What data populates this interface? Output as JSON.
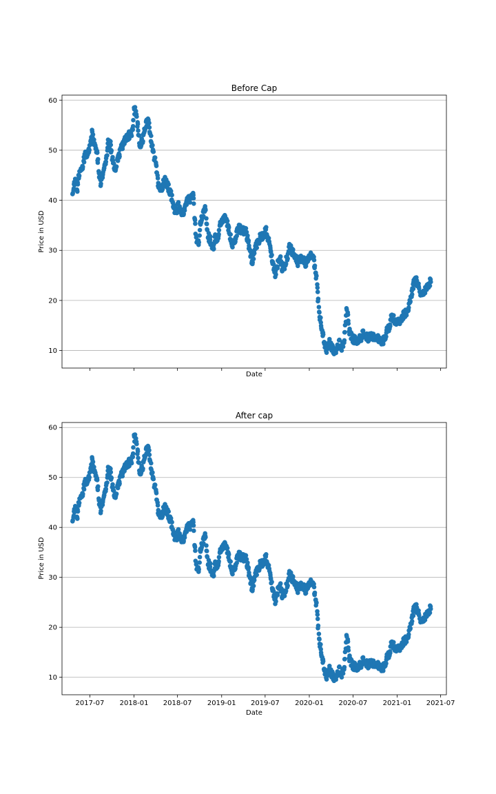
{
  "chart_data": [
    {
      "type": "scatter",
      "title": "Before Cap",
      "xlabel": "Date",
      "ylabel": "Price in USD",
      "x_tick_labels_visible": false,
      "y_grid": true,
      "x_grid": false,
      "marker_color": "#1f77b4",
      "xlim": [
        "2017-03-07",
        "2021-07-25"
      ],
      "ylim": [
        6.5,
        61
      ],
      "x_ticks": [
        "2017-07",
        "2018-01",
        "2018-07",
        "2019-01",
        "2019-07",
        "2020-01",
        "2020-07",
        "2021-01",
        "2021-07"
      ],
      "y_ticks": [
        10,
        20,
        30,
        40,
        50,
        60
      ],
      "series_keypoints": [
        [
          "2017-04-20",
          41.5
        ],
        [
          "2017-05-01",
          44
        ],
        [
          "2017-05-10",
          42.5
        ],
        [
          "2017-05-20",
          46
        ],
        [
          "2017-06-01",
          47
        ],
        [
          "2017-06-10",
          49
        ],
        [
          "2017-06-20",
          49.5
        ],
        [
          "2017-07-01",
          50.5
        ],
        [
          "2017-07-10",
          53.5
        ],
        [
          "2017-07-20",
          51
        ],
        [
          "2017-08-01",
          49
        ],
        [
          "2017-08-08",
          45.5
        ],
        [
          "2017-08-15",
          43.5
        ],
        [
          "2017-08-25",
          45.5
        ],
        [
          "2017-09-05",
          47
        ],
        [
          "2017-09-15",
          51.5
        ],
        [
          "2017-09-25",
          51
        ],
        [
          "2017-10-05",
          47.5
        ],
        [
          "2017-10-15",
          46.5
        ],
        [
          "2017-10-25",
          48.5
        ],
        [
          "2017-11-10",
          50.5
        ],
        [
          "2017-11-25",
          52
        ],
        [
          "2017-12-10",
          53
        ],
        [
          "2017-12-25",
          53.5
        ],
        [
          "2018-01-01",
          58
        ],
        [
          "2018-01-10",
          57.5
        ],
        [
          "2018-01-18",
          54
        ],
        [
          "2018-01-25",
          51
        ],
        [
          "2018-02-05",
          52
        ],
        [
          "2018-02-15",
          54
        ],
        [
          "2018-02-25",
          56
        ],
        [
          "2018-03-05",
          55
        ],
        [
          "2018-03-15",
          51.5
        ],
        [
          "2018-03-25",
          49
        ],
        [
          "2018-04-03",
          47
        ],
        [
          "2018-04-12",
          43
        ],
        [
          "2018-04-25",
          42.5
        ],
        [
          "2018-05-10",
          44
        ],
        [
          "2018-05-25",
          42.5
        ],
        [
          "2018-06-05",
          41
        ],
        [
          "2018-06-15",
          38.5
        ],
        [
          "2018-06-25",
          37.5
        ],
        [
          "2018-07-05",
          39
        ],
        [
          "2018-07-15",
          38
        ],
        [
          "2018-07-25",
          37.5
        ],
        [
          "2018-08-05",
          39.5
        ],
        [
          "2018-08-15",
          40
        ],
        [
          "2018-08-25",
          40.5
        ],
        [
          "2018-09-05",
          41
        ],
        [
          "2018-09-15",
          33
        ],
        [
          "2018-09-25",
          31
        ],
        [
          "2018-10-05",
          35.5
        ],
        [
          "2018-10-15",
          37
        ],
        [
          "2018-10-25",
          38.5
        ],
        [
          "2018-11-05",
          33
        ],
        [
          "2018-11-15",
          32
        ],
        [
          "2018-11-25",
          30
        ],
        [
          "2018-12-05",
          32.5
        ],
        [
          "2018-12-15",
          32
        ],
        [
          "2018-12-25",
          35
        ],
        [
          "2019-01-05",
          36
        ],
        [
          "2019-01-15",
          36.5
        ],
        [
          "2019-01-25",
          35.5
        ],
        [
          "2019-02-05",
          33
        ],
        [
          "2019-02-15",
          31
        ],
        [
          "2019-02-25",
          32
        ],
        [
          "2019-03-10",
          34.5
        ],
        [
          "2019-03-25",
          34
        ],
        [
          "2019-04-10",
          34
        ],
        [
          "2019-04-20",
          32
        ],
        [
          "2019-05-01",
          29.5
        ],
        [
          "2019-05-08",
          27.5
        ],
        [
          "2019-05-18",
          30
        ],
        [
          "2019-05-30",
          31.5
        ],
        [
          "2019-06-10",
          32.5
        ],
        [
          "2019-06-25",
          33
        ],
        [
          "2019-07-05",
          34
        ],
        [
          "2019-07-15",
          32
        ],
        [
          "2019-07-25",
          29.5
        ],
        [
          "2019-08-05",
          26.5
        ],
        [
          "2019-08-12",
          25
        ],
        [
          "2019-08-22",
          27
        ],
        [
          "2019-09-01",
          29
        ],
        [
          "2019-09-10",
          26.5
        ],
        [
          "2019-09-20",
          27
        ],
        [
          "2019-09-30",
          28.5
        ],
        [
          "2019-10-10",
          30.5
        ],
        [
          "2019-10-20",
          30
        ],
        [
          "2019-11-01",
          29
        ],
        [
          "2019-11-15",
          27.5
        ],
        [
          "2019-11-25",
          28.5
        ],
        [
          "2019-12-05",
          28
        ],
        [
          "2019-12-15",
          27.5
        ],
        [
          "2019-12-25",
          28
        ],
        [
          "2020-01-05",
          29.5
        ],
        [
          "2020-01-12",
          29
        ],
        [
          "2020-01-20",
          28
        ],
        [
          "2020-01-28",
          25.5
        ],
        [
          "2020-02-03",
          23
        ],
        [
          "2020-02-08",
          19
        ],
        [
          "2020-02-13",
          17
        ],
        [
          "2020-02-18",
          15.5
        ],
        [
          "2020-02-23",
          14.5
        ],
        [
          "2020-03-01",
          12
        ],
        [
          "2020-03-08",
          11
        ],
        [
          "2020-03-15",
          10
        ],
        [
          "2020-03-25",
          11.5
        ],
        [
          "2020-04-05",
          10.5
        ],
        [
          "2020-04-15",
          9.5
        ],
        [
          "2020-04-25",
          10.5
        ],
        [
          "2020-05-05",
          11.5
        ],
        [
          "2020-05-15",
          10.5
        ],
        [
          "2020-05-25",
          12
        ],
        [
          "2020-06-01",
          16.5
        ],
        [
          "2020-06-06",
          19.5
        ],
        [
          "2020-06-12",
          15
        ],
        [
          "2020-06-20",
          13
        ],
        [
          "2020-06-28",
          12.5
        ],
        [
          "2020-07-10",
          12
        ],
        [
          "2020-07-20",
          11.5
        ],
        [
          "2020-08-01",
          12.5
        ],
        [
          "2020-08-15",
          13.5
        ],
        [
          "2020-09-01",
          12.5
        ],
        [
          "2020-09-15",
          13
        ],
        [
          "2020-10-01",
          12.5
        ],
        [
          "2020-10-15",
          12.5
        ],
        [
          "2020-11-01",
          11.5
        ],
        [
          "2020-11-10",
          12.5
        ],
        [
          "2020-11-20",
          14
        ],
        [
          "2020-12-01",
          15
        ],
        [
          "2020-12-10",
          17
        ],
        [
          "2020-12-20",
          16
        ],
        [
          "2021-01-05",
          15.5
        ],
        [
          "2021-01-20",
          16.5
        ],
        [
          "2021-02-05",
          17.5
        ],
        [
          "2021-02-15",
          18
        ],
        [
          "2021-02-25",
          20.5
        ],
        [
          "2021-03-05",
          22
        ],
        [
          "2021-03-15",
          24.5
        ],
        [
          "2021-03-25",
          23.5
        ],
        [
          "2021-04-05",
          22
        ],
        [
          "2021-04-15",
          21
        ],
        [
          "2021-04-25",
          22
        ],
        [
          "2021-05-05",
          22.5
        ],
        [
          "2021-05-15",
          23.5
        ],
        [
          "2021-05-22",
          24
        ]
      ]
    },
    {
      "type": "scatter",
      "title": "After cap",
      "xlabel": "Date",
      "ylabel": "Price in USD",
      "x_tick_labels_visible": true,
      "y_grid": true,
      "x_grid": false,
      "marker_color": "#1f77b4",
      "xlim": [
        "2017-03-07",
        "2021-07-25"
      ],
      "ylim": [
        6.5,
        61
      ],
      "x_ticks": [
        "2017-07",
        "2018-01",
        "2018-07",
        "2019-01",
        "2019-07",
        "2020-01",
        "2020-07",
        "2021-01",
        "2021-07"
      ],
      "y_ticks": [
        10,
        20,
        30,
        40,
        50,
        60
      ],
      "series_keypoints_same_as": "Before Cap"
    }
  ]
}
